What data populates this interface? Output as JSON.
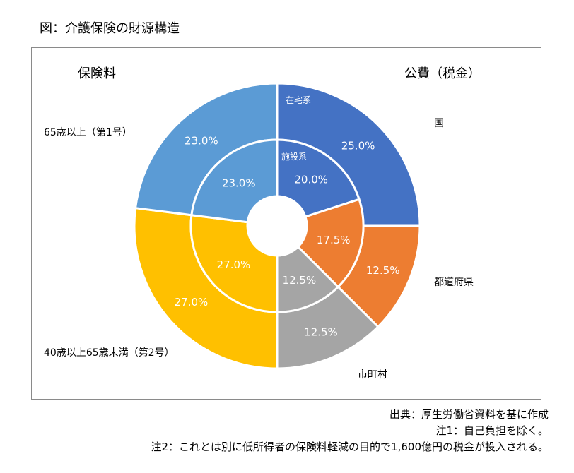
{
  "title": "図：介護保険の財源構造",
  "chart_data": {
    "type": "pie",
    "variant": "double-donut",
    "group_labels": {
      "insurance": "保険料",
      "public": "公費（税金）"
    },
    "outer_tag": "在宅系",
    "inner_tag": "施設系",
    "categories": [
      "国",
      "都道府県",
      "市町村",
      "40歳以上65歳未満（第2号）",
      "65歳以上（第1号）"
    ],
    "series": [
      {
        "name": "在宅系",
        "ring": "outer",
        "values": [
          25.0,
          12.5,
          12.5,
          27.0,
          23.0
        ],
        "labels": [
          "25.0%",
          "12.5%",
          "12.5%",
          "27.0%",
          "23.0%"
        ]
      },
      {
        "name": "施設系",
        "ring": "inner",
        "values": [
          20.0,
          17.5,
          12.5,
          27.0,
          23.0
        ],
        "labels": [
          "20.0%",
          "17.5%",
          "12.5%",
          "27.0%",
          "23.0%"
        ]
      }
    ],
    "colors": [
      "#4472c4",
      "#ed7d31",
      "#a5a5a5",
      "#ffc000",
      "#5b9bd5"
    ],
    "legend": "none"
  },
  "notes": {
    "source": "出典：厚生労働省資料を基に作成",
    "note1": "注1：自己負担を除く。",
    "note2": "注2：これとは別に低所得者の保険料軽減の目的で1,600億円の税金が投入される。"
  }
}
